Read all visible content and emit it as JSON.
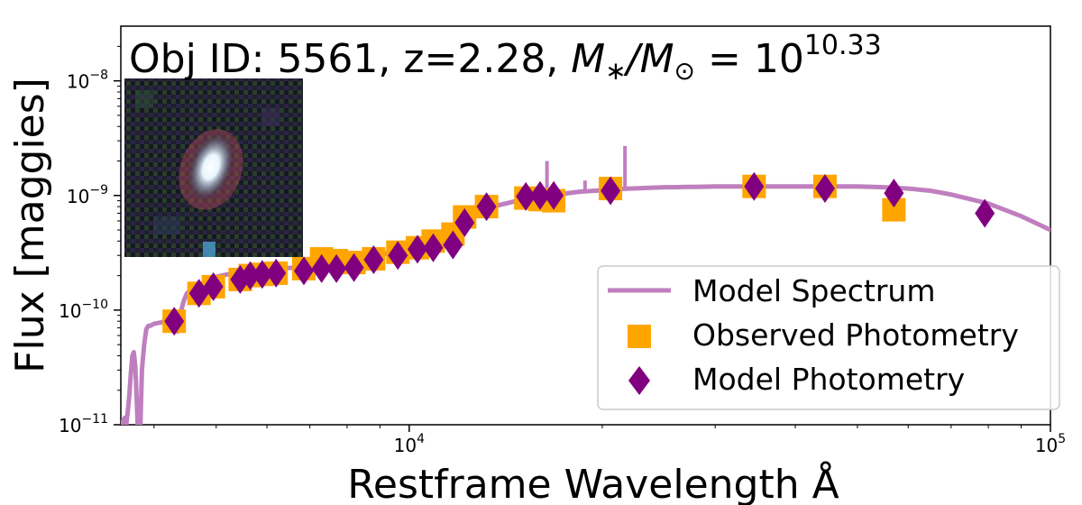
{
  "chart_data": {
    "type": "scatter",
    "title": {
      "prefix": "Obj ID: 5561, z=2.28, ",
      "mass_M": "M",
      "mass_star": "∗",
      "mass_slash": "/",
      "mass_sun": "⊙",
      "mass_eq": " = 10",
      "mass_exp": "10.33"
    },
    "xlabel": "Restframe Wavelength Å",
    "ylabel": "Flux [maggies]",
    "xscale": "log",
    "yscale": "log",
    "xlim": [
      3550,
      100000
    ],
    "ylim": [
      1e-11,
      3e-08
    ],
    "x_ticks": [
      {
        "base": "10",
        "exp": "4"
      },
      {
        "base": "10",
        "exp": "5"
      }
    ],
    "y_ticks": [
      {
        "base": "10",
        "exp": "−11"
      },
      {
        "base": "10",
        "exp": "−10"
      },
      {
        "base": "10",
        "exp": "−9"
      },
      {
        "base": "10",
        "exp": "−8"
      }
    ],
    "legend": {
      "location": "lower right",
      "entries": [
        "Model Spectrum",
        "Observed Photometry",
        "Model Photometry"
      ]
    },
    "colors": {
      "model_spectrum": "#bf7fbf",
      "observed": "#ffa500",
      "model_phot": "#800080"
    },
    "inset": {
      "content": "galaxy cutout image",
      "position": "top-left"
    },
    "series": [
      {
        "name": "Model Spectrum",
        "kind": "line",
        "x": [
          3550,
          3570,
          3600,
          3620,
          3640,
          3660,
          3680,
          3700,
          3720,
          3740,
          3760,
          3780,
          3800,
          3830,
          3860,
          3880,
          3890,
          3900,
          3920,
          3950,
          3980,
          4000,
          4050,
          4100,
          4150,
          4200,
          4250,
          4300,
          4350,
          4400,
          4450,
          4500,
          4600,
          4700,
          4800,
          4900,
          5000,
          5100,
          5200,
          5400,
          5600,
          5800,
          6000,
          6300,
          6600,
          6900,
          7200,
          7600,
          8000,
          8500,
          9000,
          9500,
          10000,
          10500,
          11000,
          11500,
          11800,
          12000,
          12200,
          12500,
          12800,
          13000,
          13500,
          14000,
          14500,
          15000,
          15500,
          16000,
          16500,
          17000,
          17500,
          18000,
          18500,
          19000,
          19500,
          20000,
          20500,
          21000,
          21500,
          22000,
          23000,
          24000,
          25000,
          26000,
          27000,
          28000,
          30000,
          33000,
          36000,
          40000,
          45000,
          50000,
          55000,
          60000,
          65000,
          70000,
          80000,
          90000,
          100000
        ],
        "y": [
          1e-11,
          1.05e-11,
          1.15e-11,
          1e-11,
          1.3e-11,
          1.8e-11,
          2.8e-11,
          4e-11,
          4.3e-11,
          3.2e-11,
          1.6e-11,
          7e-12,
          6e-12,
          3e-11,
          5e-11,
          6.2e-11,
          6.8e-11,
          7e-11,
          7.3e-11,
          7.3e-11,
          7.5e-11,
          7.6e-11,
          7.7e-11,
          7.8e-11,
          8e-11,
          8.2e-11,
          8.5e-11,
          7.6e-11,
          6.5e-11,
          9.5e-11,
          1.2e-10,
          1.4e-10,
          1.55e-10,
          1.65e-10,
          1.75e-10,
          1.85e-10,
          1.95e-10,
          2e-10,
          2.05e-10,
          2.1e-10,
          2.15e-10,
          2.2e-10,
          2.25e-10,
          2.3e-10,
          2.35e-10,
          2.4e-10,
          2.45e-10,
          2.5e-10,
          2.6e-10,
          2.8e-10,
          3e-10,
          3.3e-10,
          3.5e-10,
          3.7e-10,
          3.9e-10,
          4.2e-10,
          4.4e-10,
          4.8e-10,
          5.5e-10,
          6.5e-10,
          7.2e-10,
          7.6e-10,
          8e-10,
          8.4e-10,
          8.8e-10,
          9.2e-10,
          9.5e-10,
          9.8e-10,
          1e-09,
          1.02e-09,
          1.04e-09,
          1.06e-09,
          1.08e-09,
          1.09e-09,
          1.1e-09,
          1.11e-09,
          1.12e-09,
          1.13e-09,
          1.14e-09,
          1.15e-09,
          1.16e-09,
          1.17e-09,
          1.18e-09,
          1.18e-09,
          1.19e-09,
          1.19e-09,
          1.2e-09,
          1.2e-09,
          1.2e-09,
          1.2e-09,
          1.2e-09,
          1.2e-09,
          1.18e-09,
          1.15e-09,
          1.1e-09,
          1.02e-09,
          8.5e-10,
          6.6e-10,
          5e-10
        ]
      },
      {
        "name": "Observed Photometry",
        "kind": "marker",
        "marker": "square",
        "x": [
          4300,
          4700,
          4950,
          5450,
          5650,
          5900,
          6200,
          6850,
          7300,
          7700,
          8200,
          8800,
          9600,
          10300,
          10900,
          11700,
          12200,
          13200,
          15200,
          16000,
          16800,
          20600,
          34500,
          44500,
          57000
        ],
        "y": [
          8e-11,
          1.4e-10,
          1.6e-10,
          1.85e-10,
          2e-10,
          2.05e-10,
          2.1e-10,
          2.3e-10,
          2.8e-10,
          2.7e-10,
          2.6e-10,
          2.8e-10,
          3.2e-10,
          3.5e-10,
          4e-10,
          4.6e-10,
          6.5e-10,
          8e-10,
          9.5e-10,
          9.2e-10,
          9e-10,
          1.15e-09,
          1.2e-09,
          1.2e-09,
          7.5e-10
        ]
      },
      {
        "name": "Model Photometry",
        "kind": "marker",
        "marker": "diamond",
        "x": [
          4300,
          4700,
          4950,
          5450,
          5650,
          5900,
          6200,
          6850,
          7300,
          7700,
          8200,
          8800,
          9600,
          10300,
          10900,
          11700,
          12200,
          13200,
          15200,
          16000,
          16800,
          20600,
          34500,
          44500,
          57000,
          79000
        ],
        "y": [
          8e-11,
          1.4e-10,
          1.6e-10,
          1.85e-10,
          2e-10,
          2.05e-10,
          2.1e-10,
          2.2e-10,
          2.3e-10,
          2.3e-10,
          2.35e-10,
          2.75e-10,
          3e-10,
          3.4e-10,
          3.5e-10,
          3.7e-10,
          5.8e-10,
          8e-10,
          9.8e-10,
          1e-09,
          1e-09,
          1.1e-09,
          1.2e-09,
          1.15e-09,
          1.05e-09,
          7e-10
        ]
      }
    ]
  }
}
